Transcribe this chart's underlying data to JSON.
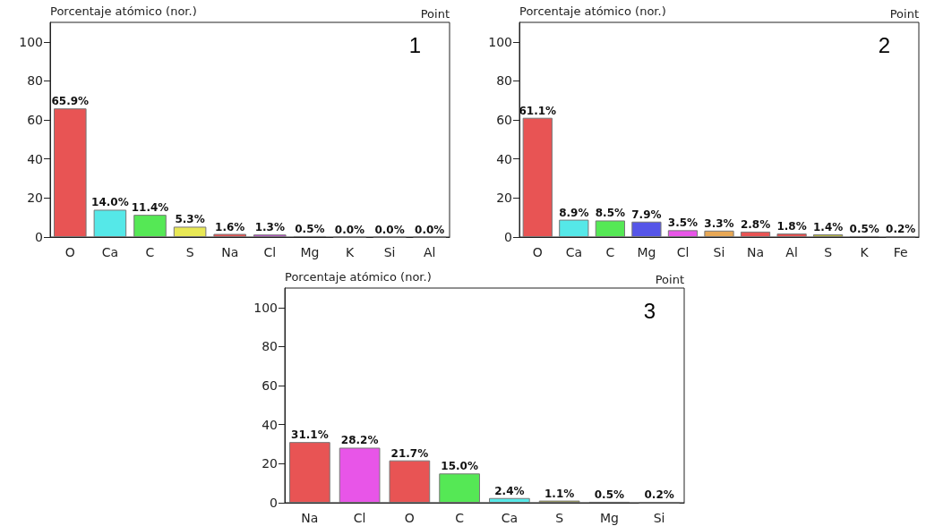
{
  "chart_data": [
    {
      "type": "bar",
      "ylabel": "Porcentaje atómico (nor.)",
      "annotations": [
        "Point",
        "1"
      ],
      "categories": [
        "O",
        "Ca",
        "C",
        "S",
        "Na",
        "Cl",
        "Mg",
        "K",
        "Si",
        "Al"
      ],
      "values": [
        65.9,
        14.0,
        11.4,
        5.3,
        1.6,
        1.3,
        0.5,
        0.0,
        0.0,
        0.0
      ],
      "value_labels": [
        "65.9%",
        "14.0%",
        "11.4%",
        "5.3%",
        "1.6%",
        "1.3%",
        "0.5%",
        "0.0%",
        "0.0%",
        "0.0%"
      ],
      "colors": [
        "#e85454",
        "#55e8e8",
        "#55e855",
        "#e8e855",
        "#e85454",
        "#c050d0",
        "#5555e8",
        "#777777",
        "#777777",
        "#777777"
      ],
      "ylim": [
        0,
        110
      ],
      "yticks": [
        0,
        20,
        40,
        60,
        80,
        100
      ]
    },
    {
      "type": "bar",
      "ylabel": "Porcentaje atómico (nor.)",
      "annotations": [
        "Point",
        "2"
      ],
      "categories": [
        "O",
        "Ca",
        "C",
        "Mg",
        "Cl",
        "Si",
        "Na",
        "Al",
        "S",
        "K",
        "Fe"
      ],
      "values": [
        61.1,
        8.9,
        8.5,
        7.9,
        3.5,
        3.3,
        2.8,
        1.8,
        1.4,
        0.5,
        0.2
      ],
      "value_labels": [
        "61.1%",
        "8.9%",
        "8.5%",
        "7.9%",
        "3.5%",
        "3.3%",
        "2.8%",
        "1.8%",
        "1.4%",
        "0.5%",
        "0.2%"
      ],
      "colors": [
        "#e85454",
        "#55e8e8",
        "#55e855",
        "#5555e8",
        "#e855e8",
        "#e8a855",
        "#e85454",
        "#e85454",
        "#b8b840",
        "#a0a0a0",
        "#777777"
      ],
      "ylim": [
        0,
        110
      ],
      "yticks": [
        0,
        20,
        40,
        60,
        80,
        100
      ]
    },
    {
      "type": "bar",
      "ylabel": "Porcentaje atómico (nor.)",
      "annotations": [
        "Point",
        "3"
      ],
      "categories": [
        "Na",
        "Cl",
        "O",
        "C",
        "Ca",
        "S",
        "Mg",
        "Si"
      ],
      "values": [
        31.1,
        28.2,
        21.7,
        15.0,
        2.4,
        1.1,
        0.5,
        0.2
      ],
      "value_labels": [
        "31.1%",
        "28.2%",
        "21.7%",
        "15.0%",
        "2.4%",
        "1.1%",
        "0.5%",
        "0.2%"
      ],
      "colors": [
        "#e85454",
        "#e855e8",
        "#e85454",
        "#55e855",
        "#55e8e8",
        "#b8b840",
        "#5555e8",
        "#777777"
      ],
      "ylim": [
        0,
        110
      ],
      "yticks": [
        0,
        20,
        40,
        60,
        80,
        100
      ]
    }
  ]
}
